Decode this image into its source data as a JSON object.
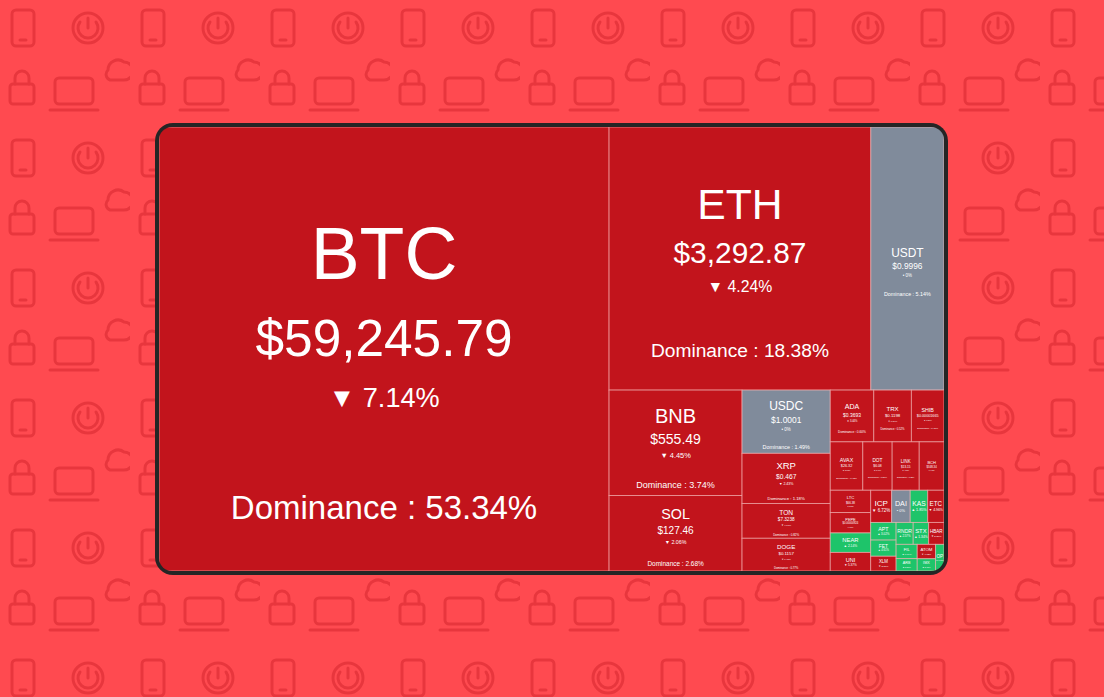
{
  "chart_data": {
    "type": "treemap",
    "categories": [
      "BTC",
      "ETH",
      "USDT",
      "BNB",
      "SOL",
      "USDC",
      "XRP",
      "TON",
      "DOGE",
      "ADA",
      "TRX",
      "SHIB",
      "AVAX",
      "DOT",
      "LINK",
      "BCH",
      "LTC",
      "PEPE",
      "NEAR",
      "UNI",
      "ICP",
      "DAI",
      "KAS",
      "ETC",
      "APT",
      "FET",
      "XLM",
      "RNDR",
      "STX",
      "HBAR",
      "FIL",
      "ARB",
      "ATOM",
      "IMX",
      "OP"
    ],
    "values": [
      53.34,
      18.38,
      5.14,
      3.74,
      2.68,
      1.49,
      1.18,
      0.82,
      0.77,
      0.6,
      0.52,
      0.45,
      0.42,
      0.38,
      0.35,
      0.32,
      0.24,
      0.22,
      0.21,
      0.2,
      0.18,
      0.16,
      0.15,
      0.14,
      0.12,
      0.11,
      0.1,
      0.1,
      0.09,
      0.09,
      0.08,
      0.07,
      0.07,
      0.06,
      0.06
    ],
    "value_labels": [
      "Dominance : 53.34%",
      "Dominance : 18.38%",
      "Dominance : 5.14%",
      "Dominance : 3.74%",
      "Dominance : 2.68%",
      "Dominance : 1.49%",
      "Dominance : 1.18%",
      "Dominance : 0.82%",
      "Dominance : 0.77%",
      "Dominance : 0.60%",
      "Dominance : 0.52%",
      "Dominance : 0.45%",
      "Dominance : 0.42%",
      "Dominance : 0.38%",
      "Dominance : 0.35%",
      null,
      null,
      null,
      null,
      null,
      null,
      null,
      null,
      null,
      null,
      null,
      null,
      null,
      null,
      null,
      null,
      null,
      null,
      null,
      null
    ],
    "price_labels": [
      "$59,245.79",
      "$3,292.87",
      "$0.9996",
      "$555.49",
      "$127.46",
      "$1.0001",
      "$0.467",
      "$7.3238",
      "$0.1157",
      "$0.3693",
      "$0.1198",
      "$0.00001665",
      "$26.32",
      "$6.08",
      "$13.15",
      "$348.34",
      "$66.38",
      "$0.00000924",
      null,
      null,
      null,
      null,
      null,
      null,
      null,
      null,
      null,
      null,
      null,
      null,
      null,
      null,
      null,
      null,
      null
    ],
    "change_labels": [
      "▼ 7.14%",
      "▼ 4.24%",
      "• 0%",
      "▼ 4.45%",
      "▼ 2.06%",
      "• 0%",
      "▼ 2.43%",
      "▼ 4.10%",
      "▼ 6.48%",
      "▼ 3.44%",
      "▼ 0.84%",
      "▼ 6.26%",
      "▼ 5.15%",
      "▼ 5.49%",
      "▼ 4.87%",
      "▼ 7.92%",
      "▼ 5.23%",
      "▼ 8.11%",
      "▲ 2.14%",
      "▼ 5.37%",
      "▼ 6.72%",
      "• 0%",
      "▲ 1.85%",
      "▼ 4.96%",
      "▲ 3.02%",
      "▲ 4.61%",
      "▼ 3.88%",
      "▲ 2.57%",
      "▲ 1.34%",
      "▼ 5.80%",
      "▲ 0.96%",
      "▲ 2.21%",
      "▼ 4.12%",
      "▲ 3.45%",
      "▲ 1.72%"
    ],
    "colors": [
      "#c2141c",
      "#c2141c",
      "#808b9b",
      "#c2141c",
      "#c2141c",
      "#808b9b",
      "#c2141c",
      "#c2141c",
      "#c2141c",
      "#c2141c",
      "#c2141c",
      "#c2141c",
      "#c2141c",
      "#c2141c",
      "#c2141c",
      "#c2141c",
      "#c2141c",
      "#c2141c",
      "#1ec46a",
      "#c2141c",
      "#c2141c",
      "#808b9b",
      "#1ec46a",
      "#c2141c",
      "#1ec46a",
      "#1ec46a",
      "#c2141c",
      "#1ec46a",
      "#1ec46a",
      "#c2141c",
      "#1ec46a",
      "#1ec46a",
      "#c2141c",
      "#1ec46a",
      "#1ec46a"
    ],
    "data_labels": true
  }
}
